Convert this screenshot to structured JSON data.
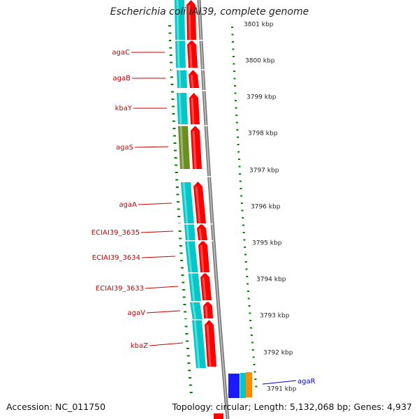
{
  "title": "Escherichia coli IAI39, complete genome",
  "accession": "Accession: NC_011750",
  "topology": "Topology: circular; Length: 5,132,068 bp; Genes: 4,937",
  "colors": {
    "gene_label": "#cc0000",
    "highlight_label": "#0000cc",
    "cds_forward": "#ff0000",
    "gene_cyan": "#00c8c8",
    "gene_olive": "#6b8e23",
    "tick": "#008000",
    "backbone": "#888888"
  },
  "scale": {
    "ticks": [
      {
        "label": "3801 kbp"
      },
      {
        "label": "3800 kbp"
      },
      {
        "label": "3799 kbp"
      },
      {
        "label": "3798 kbp"
      },
      {
        "label": "3797 kbp"
      },
      {
        "label": "3796 kbp"
      },
      {
        "label": "3795 kbp"
      },
      {
        "label": "3794 kbp"
      },
      {
        "label": "3793 kbp"
      },
      {
        "label": "3792 kbp"
      },
      {
        "label": "3791 kbp"
      }
    ]
  },
  "genes": [
    {
      "name": "agaC"
    },
    {
      "name": "agaB"
    },
    {
      "name": "kbaY"
    },
    {
      "name": "agaS"
    },
    {
      "name": "agaA"
    },
    {
      "name": "ECIAI39_3635"
    },
    {
      "name": "ECIAI39_3634"
    },
    {
      "name": "ECIAI39_3633"
    },
    {
      "name": "agaV"
    },
    {
      "name": "kbaZ"
    },
    {
      "name": "agaR"
    }
  ]
}
